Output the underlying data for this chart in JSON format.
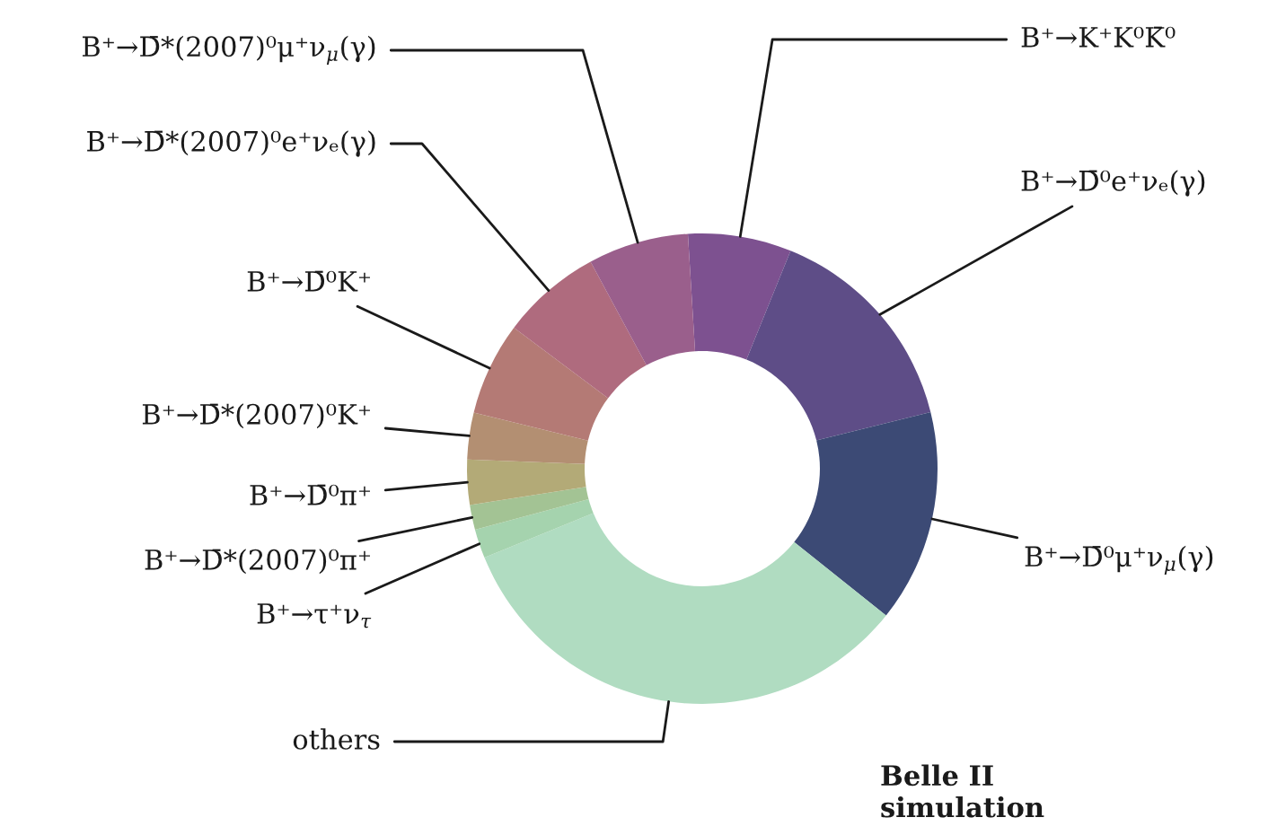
{
  "chart_data": {
    "type": "donut",
    "categories": [
      "B⁺→K⁺K⁰K̄⁰",
      "B⁺→D̄⁰e⁺νₑ(γ)",
      "B⁺→D̄⁰μ⁺ν$_{μ}$(γ)",
      "others",
      "B⁺→τ⁺ν$_{τ}$",
      "B⁺→D̄*(2007)⁰π⁺",
      "B⁺→D̄⁰π⁺",
      "B⁺→D̄*(2007)⁰K⁺",
      "B⁺→D̄⁰K⁺",
      "B⁺→D̄*(2007)⁰e⁺νₑ(γ)",
      "B⁺→D̄*(2007)⁰μ⁺ν$_{μ}$(γ)"
    ],
    "values": [
      7.1,
      15.0,
      14.6,
      33.1,
      2.0,
      1.7,
      3.1,
      3.2,
      6.4,
      6.9,
      6.9
    ],
    "colors": [
      "#7d5190",
      "#5e4d87",
      "#3c4a75",
      "#b0dcc1",
      "#a5d3ae",
      "#a3c394",
      "#b3aa77",
      "#b38f72",
      "#b47a75",
      "#af6b7e",
      "#9a5f8c"
    ],
    "annotations": [
      "Belle II\nsimulation"
    ]
  }
}
